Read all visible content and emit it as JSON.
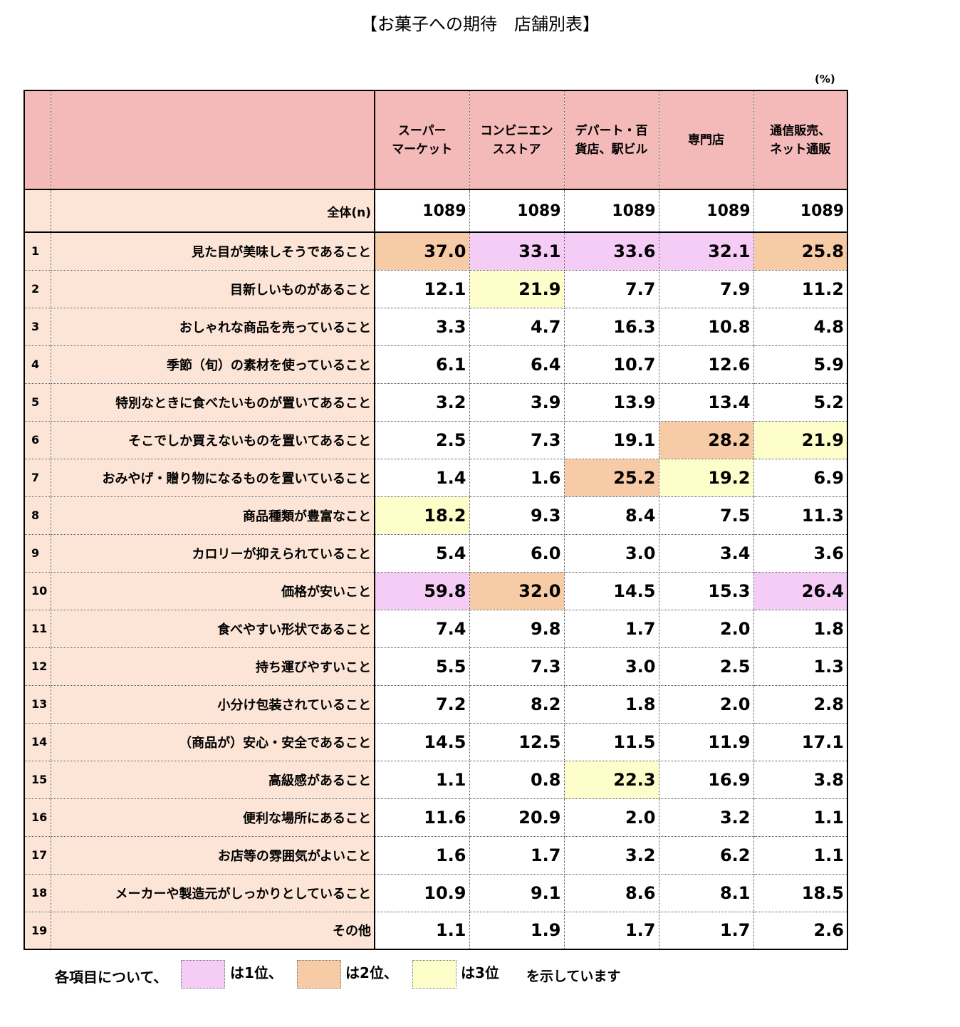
{
  "title": "【お菓子への期待　店舗別表】",
  "unit": "(%)",
  "chart_data": {
    "type": "table",
    "columns": [
      {
        "line1": "スーパー",
        "line2": "マーケット"
      },
      {
        "line1": "コンビニエン",
        "line2": "スストア"
      },
      {
        "line1": "デパート・百",
        "line2": "貨店、駅ビル"
      },
      {
        "line1": "専門店",
        "line2": ""
      },
      {
        "line1": "通信販売、",
        "line2": "ネット通販"
      }
    ],
    "total": {
      "label": "全体(n)",
      "values": [
        "1089",
        "1089",
        "1089",
        "1089",
        "1089"
      ]
    },
    "rows": [
      {
        "no": "1",
        "label": "見た目が美味しそうであること",
        "values": [
          "37.0",
          "33.1",
          "33.6",
          "32.1",
          "25.8"
        ],
        "ranks": [
          2,
          1,
          1,
          1,
          2
        ]
      },
      {
        "no": "2",
        "label": "目新しいものがあること",
        "values": [
          "12.1",
          "21.9",
          "7.7",
          "7.9",
          "11.2"
        ],
        "ranks": [
          0,
          3,
          0,
          0,
          0
        ]
      },
      {
        "no": "3",
        "label": "おしゃれな商品を売っていること",
        "values": [
          "3.3",
          "4.7",
          "16.3",
          "10.8",
          "4.8"
        ],
        "ranks": [
          0,
          0,
          0,
          0,
          0
        ]
      },
      {
        "no": "4",
        "label": "季節（旬）の素材を使っていること",
        "values": [
          "6.1",
          "6.4",
          "10.7",
          "12.6",
          "5.9"
        ],
        "ranks": [
          0,
          0,
          0,
          0,
          0
        ]
      },
      {
        "no": "5",
        "label": "特別なときに食べたいものが置いてあること",
        "values": [
          "3.2",
          "3.9",
          "13.9",
          "13.4",
          "5.2"
        ],
        "ranks": [
          0,
          0,
          0,
          0,
          0
        ]
      },
      {
        "no": "6",
        "label": "そこでしか買えないものを置いてあること",
        "values": [
          "2.5",
          "7.3",
          "19.1",
          "28.2",
          "21.9"
        ],
        "ranks": [
          0,
          0,
          0,
          2,
          3
        ]
      },
      {
        "no": "7",
        "label": "おみやげ・贈り物になるものを置いていること",
        "values": [
          "1.4",
          "1.6",
          "25.2",
          "19.2",
          "6.9"
        ],
        "ranks": [
          0,
          0,
          2,
          3,
          0
        ]
      },
      {
        "no": "8",
        "label": "商品種類が豊富なこと",
        "values": [
          "18.2",
          "9.3",
          "8.4",
          "7.5",
          "11.3"
        ],
        "ranks": [
          3,
          0,
          0,
          0,
          0
        ]
      },
      {
        "no": "9",
        "label": "カロリーが抑えられていること",
        "values": [
          "5.4",
          "6.0",
          "3.0",
          "3.4",
          "3.6"
        ],
        "ranks": [
          0,
          0,
          0,
          0,
          0
        ]
      },
      {
        "no": "10",
        "label": "価格が安いこと",
        "values": [
          "59.8",
          "32.0",
          "14.5",
          "15.3",
          "26.4"
        ],
        "ranks": [
          1,
          2,
          0,
          0,
          1
        ]
      },
      {
        "no": "11",
        "label": "食べやすい形状であること",
        "values": [
          "7.4",
          "9.8",
          "1.7",
          "2.0",
          "1.8"
        ],
        "ranks": [
          0,
          0,
          0,
          0,
          0
        ]
      },
      {
        "no": "12",
        "label": "持ち運びやすいこと",
        "values": [
          "5.5",
          "7.3",
          "3.0",
          "2.5",
          "1.3"
        ],
        "ranks": [
          0,
          0,
          0,
          0,
          0
        ]
      },
      {
        "no": "13",
        "label": "小分け包装されていること",
        "values": [
          "7.2",
          "8.2",
          "1.8",
          "2.0",
          "2.8"
        ],
        "ranks": [
          0,
          0,
          0,
          0,
          0
        ]
      },
      {
        "no": "14",
        "label": "（商品が）安心・安全であること",
        "values": [
          "14.5",
          "12.5",
          "11.5",
          "11.9",
          "17.1"
        ],
        "ranks": [
          0,
          0,
          0,
          0,
          0
        ]
      },
      {
        "no": "15",
        "label": "高級感があること",
        "values": [
          "1.1",
          "0.8",
          "22.3",
          "16.9",
          "3.8"
        ],
        "ranks": [
          0,
          0,
          3,
          0,
          0
        ]
      },
      {
        "no": "16",
        "label": "便利な場所にあること",
        "values": [
          "11.6",
          "20.9",
          "2.0",
          "3.2",
          "1.1"
        ],
        "ranks": [
          0,
          0,
          0,
          0,
          0
        ]
      },
      {
        "no": "17",
        "label": "お店等の雰囲気がよいこと",
        "values": [
          "1.6",
          "1.7",
          "3.2",
          "6.2",
          "1.1"
        ],
        "ranks": [
          0,
          0,
          0,
          0,
          0
        ]
      },
      {
        "no": "18",
        "label": "メーカーや製造元がしっかりとしていること",
        "values": [
          "10.9",
          "9.1",
          "8.6",
          "8.1",
          "18.5"
        ],
        "ranks": [
          0,
          0,
          0,
          0,
          0
        ]
      },
      {
        "no": "19",
        "label": "その他",
        "values": [
          "1.1",
          "1.9",
          "1.7",
          "1.7",
          "2.6"
        ],
        "ranks": [
          0,
          0,
          0,
          0,
          0
        ]
      }
    ]
  },
  "rank_colors": {
    "1": "#f5ccf5",
    "2": "#f8cba7",
    "3": "#fefecb"
  },
  "legend": {
    "prefix": "各項目について、",
    "rank1": "は1位、",
    "rank2": "は2位、",
    "rank3": "は3位",
    "suffix": "を示しています"
  }
}
